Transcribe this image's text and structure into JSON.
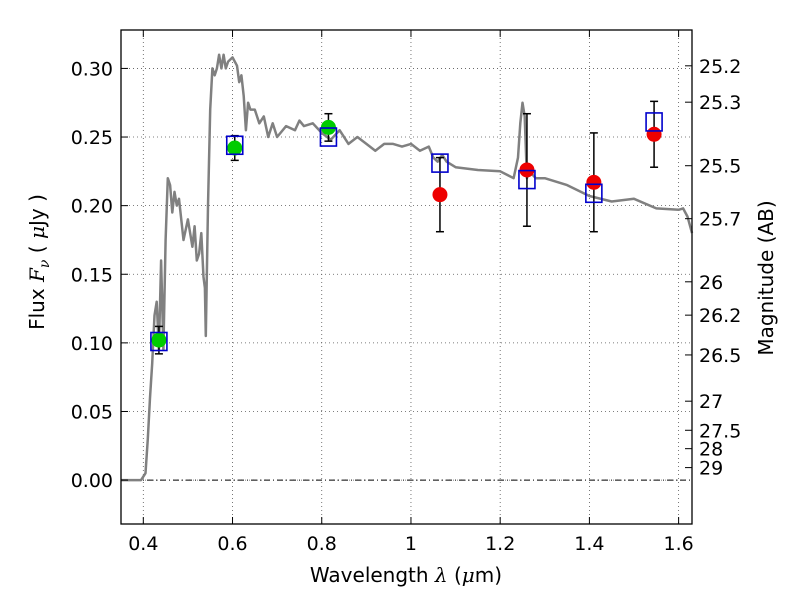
{
  "chart_data": {
    "type": "scatter",
    "xlabel": "Wavelength  λ (μm)",
    "ylabel": "Flux  F_ν  ( μJy )",
    "y2label": "Magnitude (AB)",
    "xlim": [
      0.35,
      1.63
    ],
    "ylim": [
      -0.032,
      0.328
    ],
    "grid": true,
    "x_ticks": [
      0.4,
      0.6,
      0.8,
      1.0,
      1.2,
      1.4,
      1.6
    ],
    "x_tick_labels": [
      "0.4",
      "0.6",
      "0.8",
      "1",
      "1.2",
      "1.4",
      "1.6"
    ],
    "y_ticks": [
      0.0,
      0.05,
      0.1,
      0.15,
      0.2,
      0.25,
      0.3
    ],
    "y_tick_labels": [
      "0.00",
      "0.05",
      "0.10",
      "0.15",
      "0.20",
      "0.25",
      "0.30"
    ],
    "y2_tick_labels": [
      "25.2",
      "25.3",
      "25.5",
      "25.7",
      "26",
      "26.2",
      "26.5",
      "27",
      "27.5",
      "28",
      "29"
    ],
    "y2_tick_flux": [
      0.3019,
      0.2754,
      0.2291,
      0.1905,
      0.1445,
      0.1202,
      0.0912,
      0.0575,
      0.0363,
      0.0229,
      0.0091
    ],
    "series": [
      {
        "kind": "line",
        "color": "#808080",
        "x": [
          0.35,
          0.395,
          0.405,
          0.41,
          0.415,
          0.42,
          0.425,
          0.43,
          0.435,
          0.44,
          0.445,
          0.45,
          0.455,
          0.46,
          0.465,
          0.47,
          0.475,
          0.48,
          0.49,
          0.5,
          0.51,
          0.515,
          0.52,
          0.525,
          0.53,
          0.535,
          0.538,
          0.54,
          0.545,
          0.55,
          0.555,
          0.56,
          0.565,
          0.57,
          0.575,
          0.58,
          0.585,
          0.59,
          0.6,
          0.61,
          0.615,
          0.62,
          0.625,
          0.63,
          0.635,
          0.64,
          0.65,
          0.66,
          0.67,
          0.68,
          0.69,
          0.7,
          0.72,
          0.74,
          0.75,
          0.76,
          0.78,
          0.8,
          0.82,
          0.84,
          0.86,
          0.88,
          0.9,
          0.92,
          0.94,
          0.96,
          0.98,
          1.0,
          1.02,
          1.04,
          1.05,
          1.06,
          1.07,
          1.08,
          1.1,
          1.15,
          1.2,
          1.23,
          1.24,
          1.245,
          1.25,
          1.255,
          1.26,
          1.265,
          1.28,
          1.3,
          1.35,
          1.4,
          1.45,
          1.5,
          1.55,
          1.6,
          1.61,
          1.62,
          1.63
        ],
        "y": [
          0.0,
          0.0,
          0.005,
          0.03,
          0.06,
          0.085,
          0.12,
          0.13,
          0.095,
          0.16,
          0.095,
          0.175,
          0.22,
          0.215,
          0.195,
          0.21,
          0.2,
          0.205,
          0.175,
          0.19,
          0.17,
          0.185,
          0.16,
          0.165,
          0.18,
          0.148,
          0.14,
          0.105,
          0.2,
          0.27,
          0.3,
          0.295,
          0.3,
          0.31,
          0.3,
          0.31,
          0.3,
          0.305,
          0.308,
          0.302,
          0.29,
          0.295,
          0.28,
          0.255,
          0.275,
          0.27,
          0.27,
          0.26,
          0.265,
          0.25,
          0.26,
          0.25,
          0.258,
          0.255,
          0.262,
          0.258,
          0.26,
          0.253,
          0.248,
          0.255,
          0.245,
          0.25,
          0.245,
          0.24,
          0.245,
          0.245,
          0.243,
          0.245,
          0.24,
          0.243,
          0.235,
          0.232,
          0.237,
          0.232,
          0.228,
          0.226,
          0.225,
          0.22,
          0.235,
          0.26,
          0.275,
          0.265,
          0.22,
          0.225,
          0.22,
          0.22,
          0.215,
          0.207,
          0.203,
          0.205,
          0.198,
          0.197,
          0.198,
          0.192,
          0.18
        ]
      },
      {
        "kind": "model-box",
        "color": "#0000cc",
        "x": [
          0.435,
          0.605,
          0.815,
          1.065,
          1.26,
          1.41,
          1.545
        ],
        "y": [
          0.101,
          0.244,
          0.25,
          0.231,
          0.219,
          0.209,
          0.261
        ]
      },
      {
        "kind": "points",
        "color": "#00cc00",
        "x": [
          0.435,
          0.605,
          0.815
        ],
        "y": [
          0.102,
          0.242,
          0.257
        ],
        "yerr": [
          0.01,
          0.009,
          0.01
        ]
      },
      {
        "kind": "points",
        "color": "#ee0000",
        "x": [
          1.065,
          1.26,
          1.41,
          1.545
        ],
        "y": [
          0.208,
          0.226,
          0.217,
          0.252
        ],
        "yerr": [
          0.027,
          0.041,
          0.036,
          0.024
        ]
      }
    ]
  }
}
